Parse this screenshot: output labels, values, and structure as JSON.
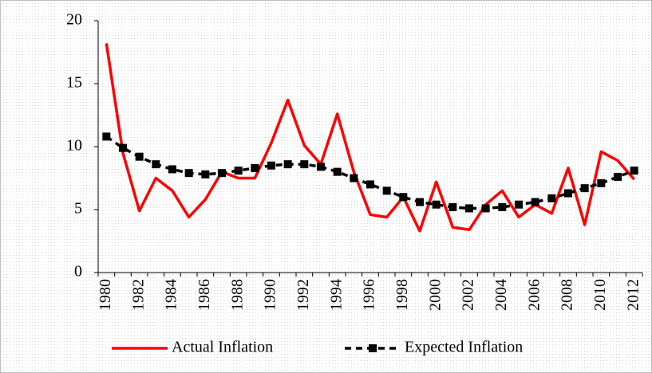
{
  "chart_data": {
    "type": "line",
    "categories": [
      "1980",
      null,
      "1982",
      null,
      "1984",
      null,
      "1986",
      null,
      "1988",
      null,
      "1990",
      null,
      "1992",
      null,
      "1994",
      null,
      "1996",
      null,
      "1998",
      null,
      "2000",
      null,
      "2002",
      null,
      "2004",
      null,
      "2006",
      null,
      "2008",
      null,
      "2010",
      null,
      "2012"
    ],
    "series": [
      {
        "name": "Actual Inflation",
        "color": "#ff0000",
        "values": [
          18.2,
          9.5,
          4.9,
          7.5,
          6.5,
          4.4,
          5.8,
          8.0,
          7.5,
          7.5,
          10.3,
          13.7,
          10.1,
          8.6,
          12.6,
          8.0,
          4.6,
          4.4,
          6.0,
          3.3,
          7.2,
          3.6,
          3.4,
          5.4,
          6.5,
          4.4,
          5.4,
          4.7,
          8.3,
          3.8,
          9.6,
          8.9,
          7.4
        ]
      },
      {
        "name": "Expected Inflation",
        "color": "#000000",
        "values": [
          10.8,
          9.9,
          9.2,
          8.6,
          8.2,
          7.9,
          7.8,
          7.9,
          8.1,
          8.3,
          8.5,
          8.6,
          8.6,
          8.4,
          8.0,
          7.5,
          7.0,
          6.5,
          6.0,
          5.6,
          5.4,
          5.2,
          5.1,
          5.1,
          5.2,
          5.4,
          5.6,
          5.9,
          6.3,
          6.7,
          7.1,
          7.6,
          8.1
        ]
      }
    ],
    "ylim": [
      0,
      20
    ],
    "yticks": [
      0,
      5,
      10,
      15,
      20
    ],
    "legend": "bottom"
  }
}
